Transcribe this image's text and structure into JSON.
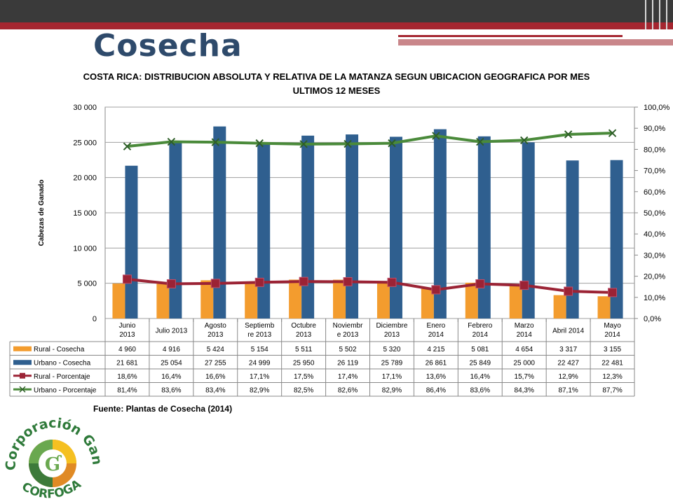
{
  "slide": {
    "title": "Cosecha",
    "source": "Fuente: Plantas de Cosecha (2014)"
  },
  "logo": {
    "text_top": "Corporación Ganadera",
    "text_bottom": "CORFOGA"
  },
  "colors": {
    "rural_bar": "#f39c2e",
    "urbano_bar": "#2f5f8f",
    "rural_line": "#9b2335",
    "urbano_line": "#4a8a3a",
    "header_dark": "#3a3a3a",
    "header_red": "#a52630"
  },
  "chart_data": {
    "type": "bar",
    "title_line1": "COSTA RICA: DISTRIBUCION ABSOLUTA Y RELATIVA DE LA MATANZA SEGUN UBICACION GEOGRAFICA POR MES",
    "title_line2": "ULTIMOS 12 MESES",
    "ylabel": "Cabezas de Ganado",
    "ylim": [
      0,
      30000
    ],
    "y_ticks": [
      "0",
      "5 000",
      "10 000",
      "15 000",
      "20 000",
      "25 000",
      "30 000"
    ],
    "y2lim": [
      0,
      100
    ],
    "y2_ticks": [
      "0,0%",
      "10,0%",
      "20,0%",
      "30,0%",
      "40,0%",
      "50,0%",
      "60,0%",
      "70,0%",
      "80,0%",
      "90,0%",
      "100,0%"
    ],
    "categories": [
      [
        "Junio",
        "2013"
      ],
      [
        "Julio 2013"
      ],
      [
        "Agosto",
        "2013"
      ],
      [
        "Septiemb",
        "re 2013"
      ],
      [
        "Octubre",
        "2013"
      ],
      [
        "Noviembr",
        "e 2013"
      ],
      [
        "Diciembre",
        "2013"
      ],
      [
        "Enero",
        "2014"
      ],
      [
        "Febrero",
        "2014"
      ],
      [
        "Marzo",
        "2014"
      ],
      [
        "Abril 2014"
      ],
      [
        "Mayo",
        "2014"
      ]
    ],
    "series": [
      {
        "name": "Rural - Cosecha",
        "kind": "bar",
        "axis": "left",
        "values": [
          4960,
          4916,
          5424,
          5154,
          5511,
          5502,
          5320,
          4215,
          5081,
          4654,
          3317,
          3155
        ],
        "labels": [
          "4 960",
          "4 916",
          "5 424",
          "5 154",
          "5 511",
          "5 502",
          "5 320",
          "4 215",
          "5 081",
          "4 654",
          "3 317",
          "3 155"
        ]
      },
      {
        "name": "Urbano - Cosecha",
        "kind": "bar",
        "axis": "left",
        "values": [
          21681,
          25054,
          27255,
          24999,
          25950,
          26119,
          25789,
          26861,
          25849,
          25000,
          22427,
          22481
        ],
        "labels": [
          "21 681",
          "25 054",
          "27 255",
          "24 999",
          "25 950",
          "26 119",
          "25 789",
          "26 861",
          "25 849",
          "25 000",
          "22 427",
          "22 481"
        ]
      },
      {
        "name": "Rural - Porcentaje",
        "kind": "line",
        "axis": "right",
        "values": [
          18.6,
          16.4,
          16.6,
          17.1,
          17.5,
          17.4,
          17.1,
          13.6,
          16.4,
          15.7,
          12.9,
          12.3
        ],
        "labels": [
          "18,6%",
          "16,4%",
          "16,6%",
          "17,1%",
          "17,5%",
          "17,4%",
          "17,1%",
          "13,6%",
          "16,4%",
          "15,7%",
          "12,9%",
          "12,3%"
        ]
      },
      {
        "name": "Urbano - Porcentaje",
        "kind": "line",
        "axis": "right",
        "values": [
          81.4,
          83.6,
          83.4,
          82.9,
          82.5,
          82.6,
          82.9,
          86.4,
          83.6,
          84.3,
          87.1,
          87.7
        ],
        "labels": [
          "81,4%",
          "83,6%",
          "83,4%",
          "82,9%",
          "82,5%",
          "82,6%",
          "82,9%",
          "86,4%",
          "83,6%",
          "84,3%",
          "87,1%",
          "87,7%"
        ]
      }
    ],
    "grid": true,
    "legend": "data-table"
  }
}
